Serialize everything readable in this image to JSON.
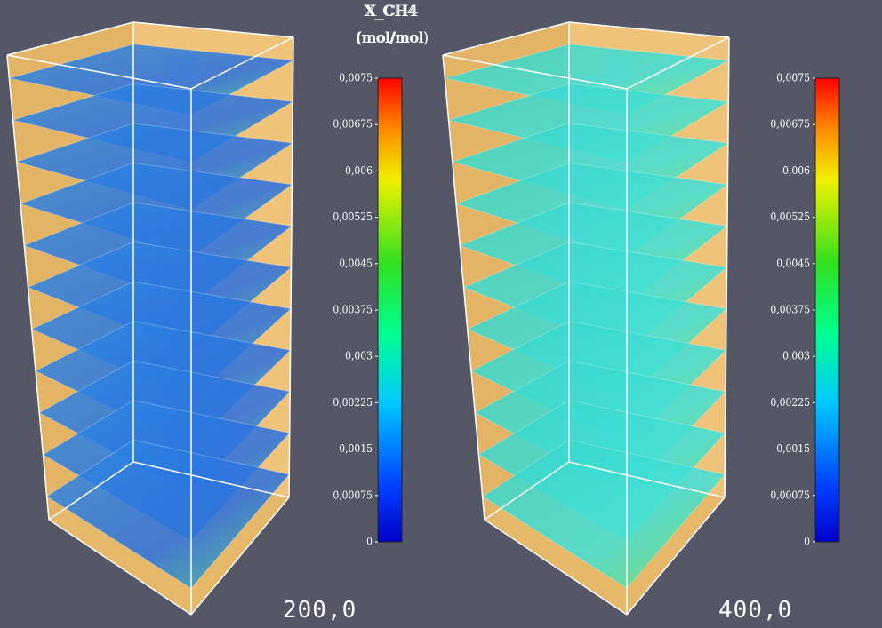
{
  "panels": [
    {
      "colorbar": {
        "title": "X_CH4",
        "unit": "(mol/mol",
        "ticks": [
          0,
          {
            "value": 0.00075,
            "label": "0,00075"
          },
          {
            "value": 0.0015,
            "label": "0,0015"
          },
          {
            "value": 0.00225,
            "label": "0,00225"
          },
          {
            "value": 0.003,
            "label": "0,003"
          },
          {
            "value": 0.00375,
            "label": "0,00375"
          },
          {
            "value": 0.0045,
            "label": "0,0045"
          },
          {
            "value": 0.00525,
            "label": "0,00525"
          },
          {
            "value": 0.006,
            "label": "0,006"
          },
          {
            "value": 0.00675,
            "label": "0,00675"
          },
          {
            "value": 0.0075,
            "label": "0,0075"
          }
        ]
      },
      "time": "200,0"
    },
    {
      "colorbar": {
        "title": "X_CH4",
        "unit": "(mol/mol)",
        "ticks": [
          0,
          {
            "value": 0.00075,
            "label": "0,00075"
          },
          {
            "value": 0.0015,
            "label": "0,0015"
          },
          {
            "value": 0.00225,
            "label": "0,00225"
          },
          {
            "value": 0.003,
            "label": "0,003"
          },
          {
            "value": 0.00375,
            "label": "0,00375"
          },
          {
            "value": 0.0045,
            "label": "0,0045"
          },
          {
            "value": 0.00525,
            "label": "0,00525"
          },
          {
            "value": 0.006,
            "label": "0,006"
          },
          {
            "value": 0.00675,
            "label": "0,00675"
          },
          {
            "value": 0.0075,
            "label": "0,0075"
          }
        ]
      },
      "time": "400,0"
    }
  ]
}
